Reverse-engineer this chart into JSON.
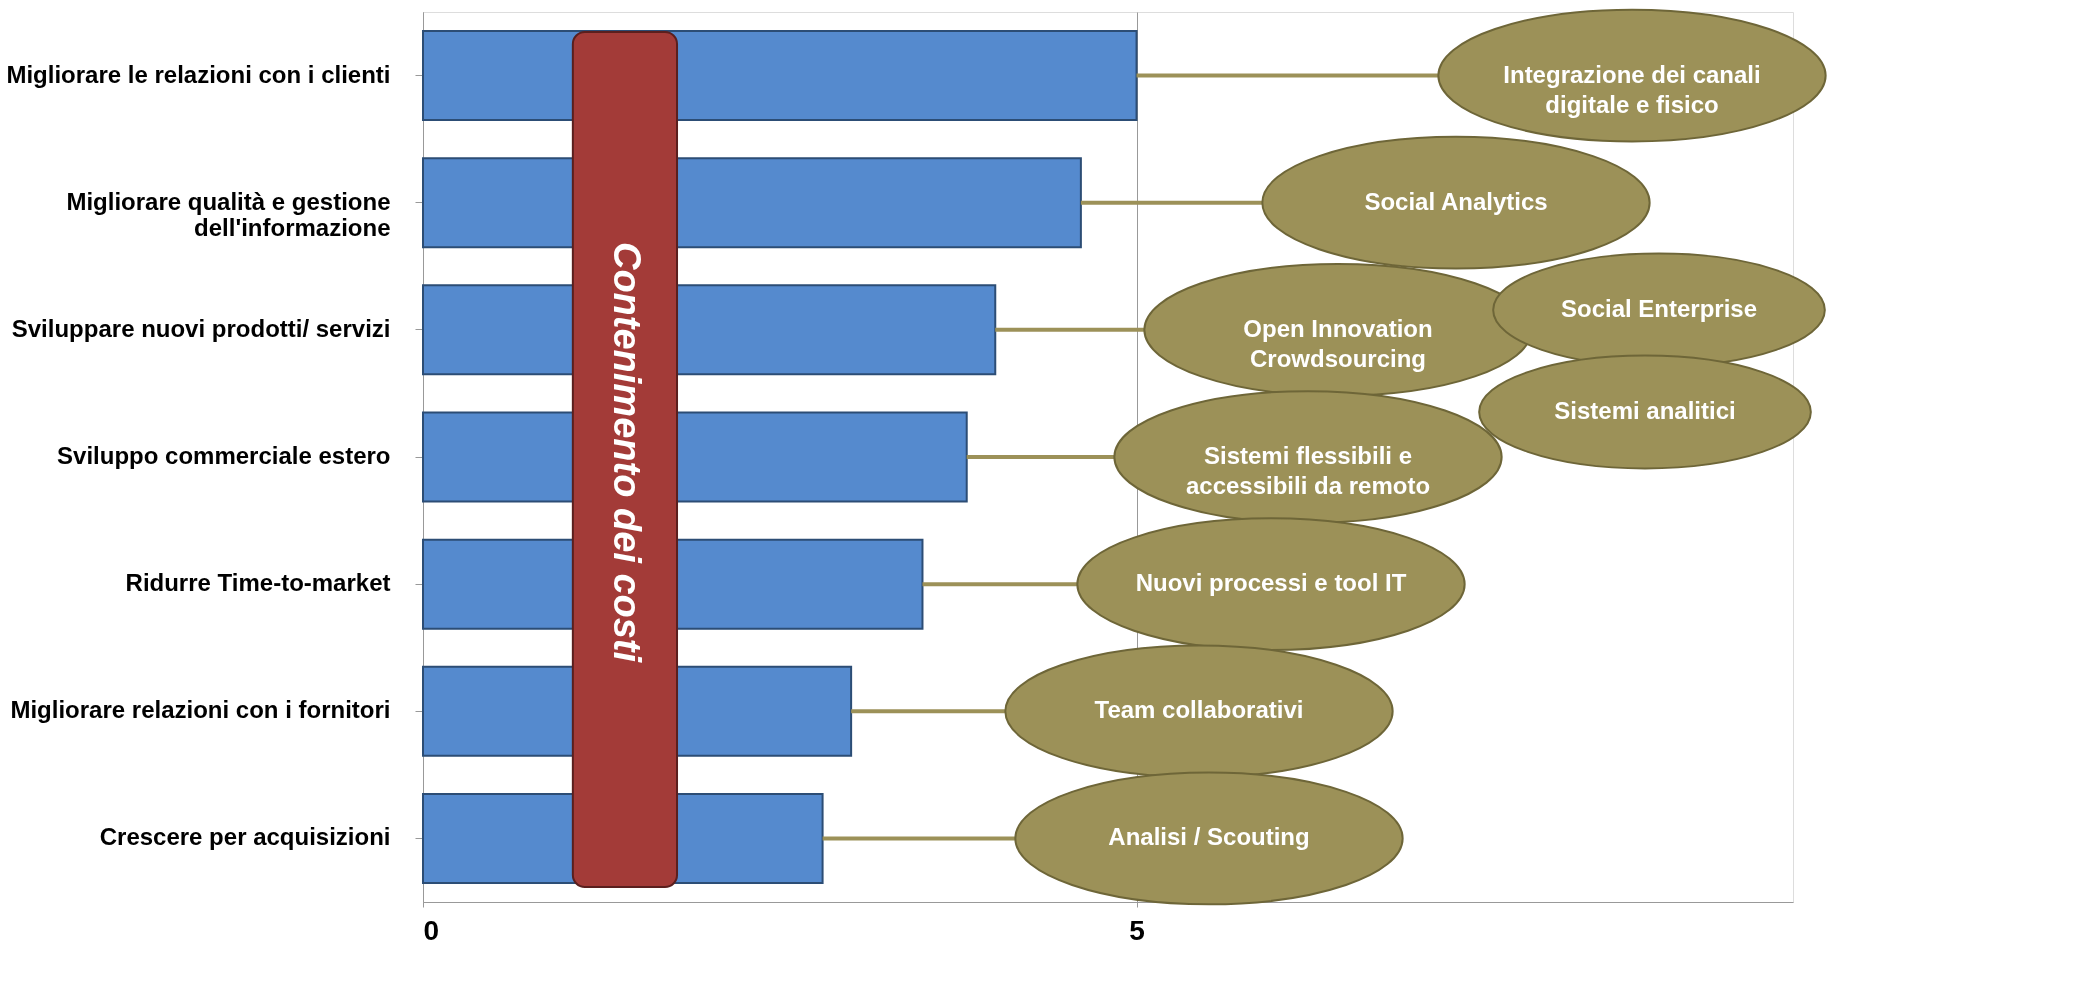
{
  "chart_data": {
    "type": "bar",
    "orientation": "horizontal",
    "categories": [
      "Migliorare le relazioni con i clienti",
      "Migliorare qualità e gestione dell'informazione",
      "Sviluppare nuovi prodotti/ servizi",
      "Sviluppo commerciale estero",
      "Ridurre Time-to-market",
      "Migliorare relazioni con i fornitori",
      "Crescere per acquisizioni"
    ],
    "values": [
      5.0,
      4.61,
      4.01,
      3.81,
      3.5,
      3.0,
      2.8
    ],
    "color": "#558ace",
    "xlim": [
      0,
      9.6
    ],
    "xticks": [
      0,
      5
    ],
    "grid": "x",
    "bands": [
      {
        "axis": "x",
        "from": 1.05,
        "to": 1.78,
        "label": "Contenimento dei costi",
        "color": "#a33b38"
      }
    ],
    "annotations": [
      {
        "text": "Integrazione dei canali digitale e fisico",
        "x": 5.0,
        "y": "Migliorare le relazioni con i clienti"
      },
      {
        "text": "Social Analytics",
        "x": 4.61,
        "y": "Migliorare qualità e gestione dell'informazione"
      },
      {
        "text": "Open Innovation Crowdsourcing",
        "x": 4.01,
        "y": "Sviluppare nuovi prodotti/ servizi"
      },
      {
        "text": "Sistemi flessibili e accessibili da remoto",
        "x": 3.81,
        "y": "Sviluppo commerciale estero"
      },
      {
        "text": "Nuovi processi e tool IT",
        "x": 3.5,
        "y": "Ridurre Time-to-market"
      },
      {
        "text": "Team collaborativi",
        "x": 3.0,
        "y": "Migliorare relazioni con i fornitori"
      },
      {
        "text": "Analisi / Scouting",
        "x": 2.8,
        "y": "Crescere per acquisizioni"
      },
      "Social Enterprise",
      "Sistemi analitici"
    ]
  }
}
